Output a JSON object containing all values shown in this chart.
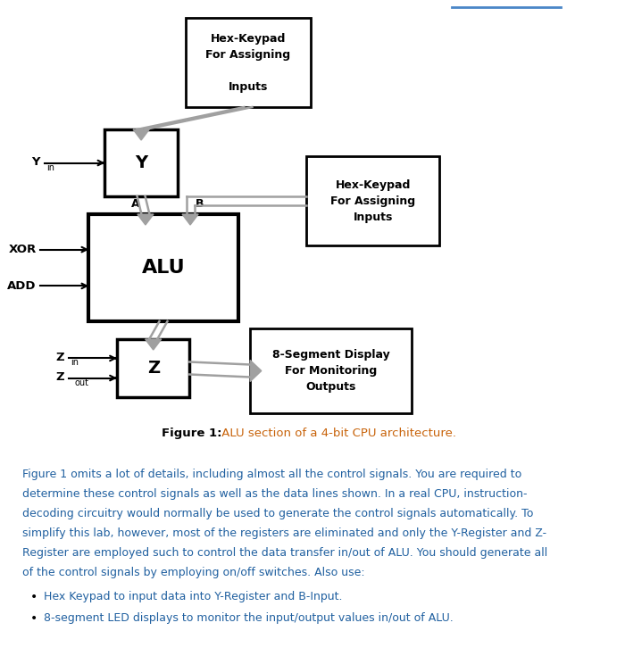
{
  "bg_color": "#ffffff",
  "box_color": "#000000",
  "gray": "#a0a0a0",
  "black": "#000000",
  "orange": "#c8630a",
  "blue": "#2060a0",
  "chegg_blue": "#4a86c8",
  "figure_caption_bold": "Figure 1:",
  "figure_caption_normal": " ALU section of a 4-bit CPU architecture.",
  "body_lines": [
    "Figure 1 omits a lot of details, including almost all the control signals. You are required to",
    "determine these control signals as well as the data lines shown. In a real CPU, instruction-",
    "decoding circuitry would normally be used to generate the control signals automatically. To",
    "simplify this lab, however, most of the registers are eliminated and only the Y-Register and Z-",
    "Register are employed such to control the data transfer in/out of ALU. You should generate all",
    "of the control signals by employing on/off switches. Also use:"
  ],
  "bullet1": "Hex Keypad to input data into Y-Register and B-Input.",
  "bullet2": "8-segment LED displays to monitor the input/output values in/out of ALU."
}
